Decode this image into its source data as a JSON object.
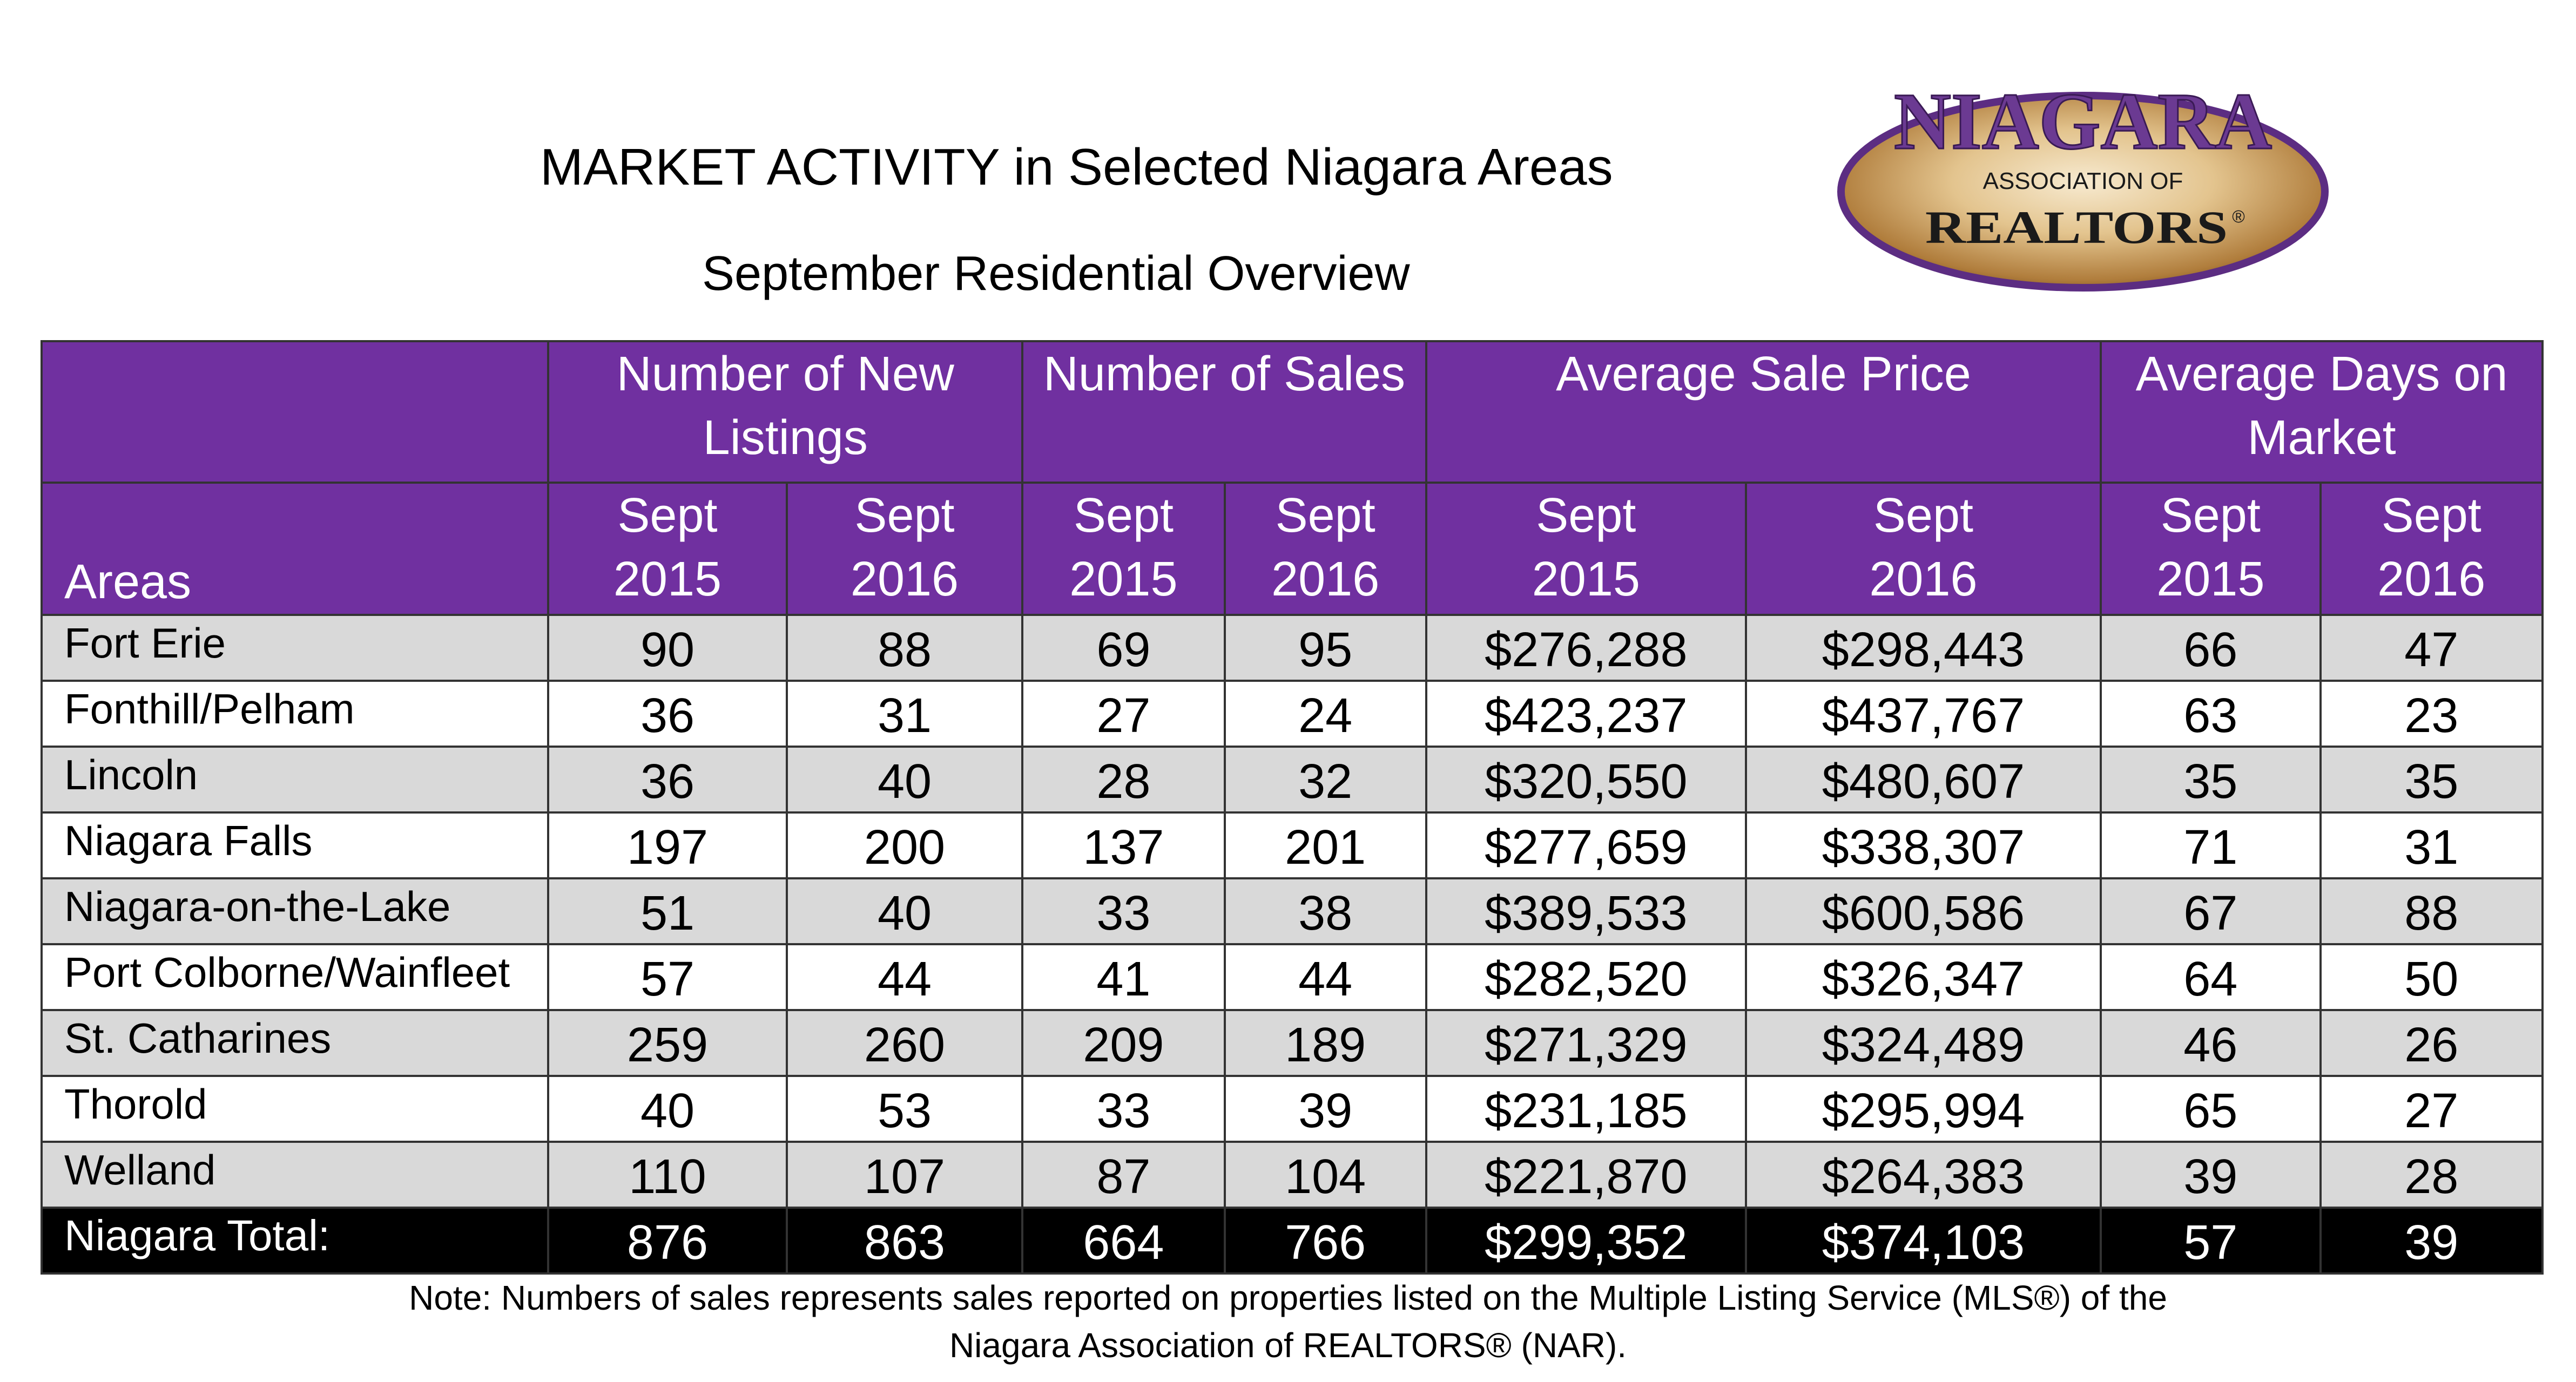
{
  "title": "MARKET ACTIVITY in Selected Niagara Areas",
  "subtitle": "September Residential Overview",
  "logo": {
    "name": "NIAGARA",
    "line2": "ASSOCIATION OF",
    "line3": "REALTORS",
    "mark": "®",
    "colors": {
      "purple": "#5c2d82",
      "gold": "#c8a25a",
      "cream": "#f4e3bd"
    }
  },
  "colors": {
    "header_bg": "#7030a0",
    "row_shade": "#d9d9d9",
    "total_bg": "#000000"
  },
  "table": {
    "group_headers": [
      "Number of New Listings",
      "Number of Sales",
      "Average Sale Price",
      "Average Days on Market"
    ],
    "areas_header": "Areas",
    "sub_headers": [
      [
        "Sept",
        "2015"
      ],
      [
        "Sept",
        "2016"
      ],
      [
        "Sept",
        "2015"
      ],
      [
        "Sept",
        "2016"
      ],
      [
        "Sept",
        "2015"
      ],
      [
        "Sept",
        "2016"
      ],
      [
        "Sept",
        "2015"
      ],
      [
        "Sept",
        "2016"
      ]
    ],
    "rows": [
      {
        "area": "Fort Erie",
        "values": [
          "90",
          "88",
          "69",
          "95",
          "$276,288",
          "$298,443",
          "66",
          "47"
        ]
      },
      {
        "area": "Fonthill/Pelham",
        "values": [
          "36",
          "31",
          "27",
          "24",
          "$423,237",
          "$437,767",
          "63",
          "23"
        ]
      },
      {
        "area": "Lincoln",
        "values": [
          "36",
          "40",
          "28",
          "32",
          "$320,550",
          "$480,607",
          "35",
          "35"
        ]
      },
      {
        "area": "Niagara Falls",
        "values": [
          "197",
          "200",
          "137",
          "201",
          "$277,659",
          "$338,307",
          "71",
          "31"
        ]
      },
      {
        "area": "Niagara-on-the-Lake",
        "values": [
          "51",
          "40",
          "33",
          "38",
          "$389,533",
          "$600,586",
          "67",
          "88"
        ]
      },
      {
        "area": "Port Colborne/Wainfleet",
        "values": [
          "57",
          "44",
          "41",
          "44",
          "$282,520",
          "$326,347",
          "64",
          "50"
        ]
      },
      {
        "area": "St. Catharines",
        "values": [
          "259",
          "260",
          "209",
          "189",
          "$271,329",
          "$324,489",
          "46",
          "26"
        ]
      },
      {
        "area": "Thorold",
        "values": [
          "40",
          "53",
          "33",
          "39",
          "$231,185",
          "$295,994",
          "65",
          "27"
        ]
      },
      {
        "area": "Welland",
        "values": [
          "110",
          "107",
          "87",
          "104",
          "$221,870",
          "$264,383",
          "39",
          "28"
        ]
      }
    ],
    "total": {
      "area": "Niagara Total:",
      "values": [
        "876",
        "863",
        "664",
        "766",
        "$299,352",
        "$374,103",
        "57",
        "39"
      ]
    }
  },
  "note": {
    "line1": "Note: Numbers of sales represents sales reported on properties listed on the Multiple Listing Service (MLS®) of the",
    "line2": "Niagara Association of REALTORS® (NAR)."
  }
}
